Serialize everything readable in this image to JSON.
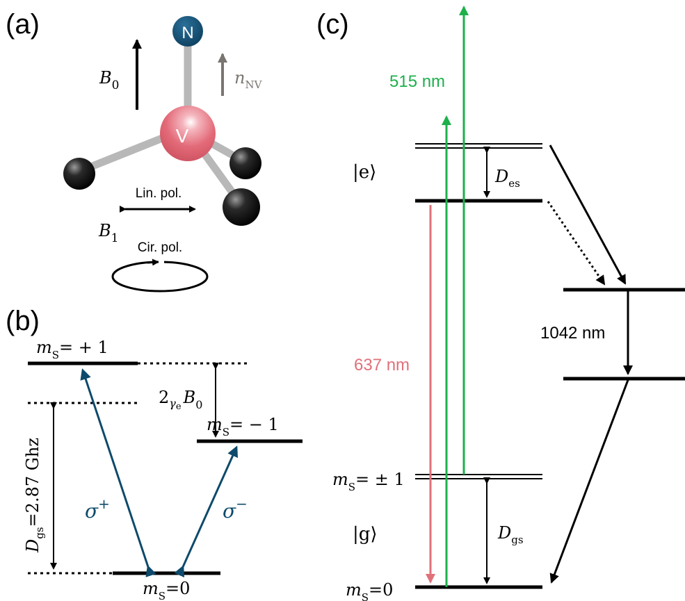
{
  "panels": {
    "a": {
      "label": "(a)"
    },
    "b": {
      "label": "(b)"
    },
    "c": {
      "label": "(c)"
    }
  },
  "molecule": {
    "nitrogen_label": "N",
    "vacancy_label": "V",
    "b0_symbol": "B",
    "b0_subscript": "0",
    "nnv_symbol": "n",
    "nnv_subscript": "NV",
    "b1_symbol": "B",
    "b1_subscript": "1",
    "lin_pol_label": "Lin. pol.",
    "cir_pol_label": "Cir. pol."
  },
  "ground_state_diagram": {
    "plus_one": {
      "m": "m",
      "sub": "S",
      "value": "= + 1"
    },
    "minus_one": {
      "m": "m",
      "sub": "S",
      "value": "= − 1"
    },
    "zero": {
      "m": "m",
      "sub": "S",
      "value": "=0"
    },
    "zeeman": {
      "prefix": "2",
      "gamma": "γ",
      "gamma_sub": "e",
      "b": "B",
      "b_sub": "0"
    },
    "zfs": {
      "d": "D",
      "d_sub": "gs",
      "value": "=2.87 Ghz"
    },
    "sigma_plus": {
      "symbol": "σ",
      "sup": "+"
    },
    "sigma_minus": {
      "symbol": "σ",
      "sup": "−"
    }
  },
  "energy_diagram": {
    "excited_state": "|e⟩",
    "ground_state": "|g⟩",
    "d_es": {
      "d": "D",
      "sub": "es"
    },
    "d_gs": {
      "d": "D",
      "sub": "gs"
    },
    "pump_wavelength": "515 nm",
    "emission_wavelength": "637 nm",
    "ir_wavelength": "1042 nm",
    "ms_pm1": {
      "m": "m",
      "sub": "S",
      "value": "= ± 1"
    },
    "ms_0": {
      "m": "m",
      "sub": "S",
      "value": "=0"
    }
  },
  "colors": {
    "green": "#1db04b",
    "red": "#e0707a",
    "navy": "#0d4a6b",
    "vacancy": "#e36a78",
    "gray_arrow": "#7a7570"
  }
}
